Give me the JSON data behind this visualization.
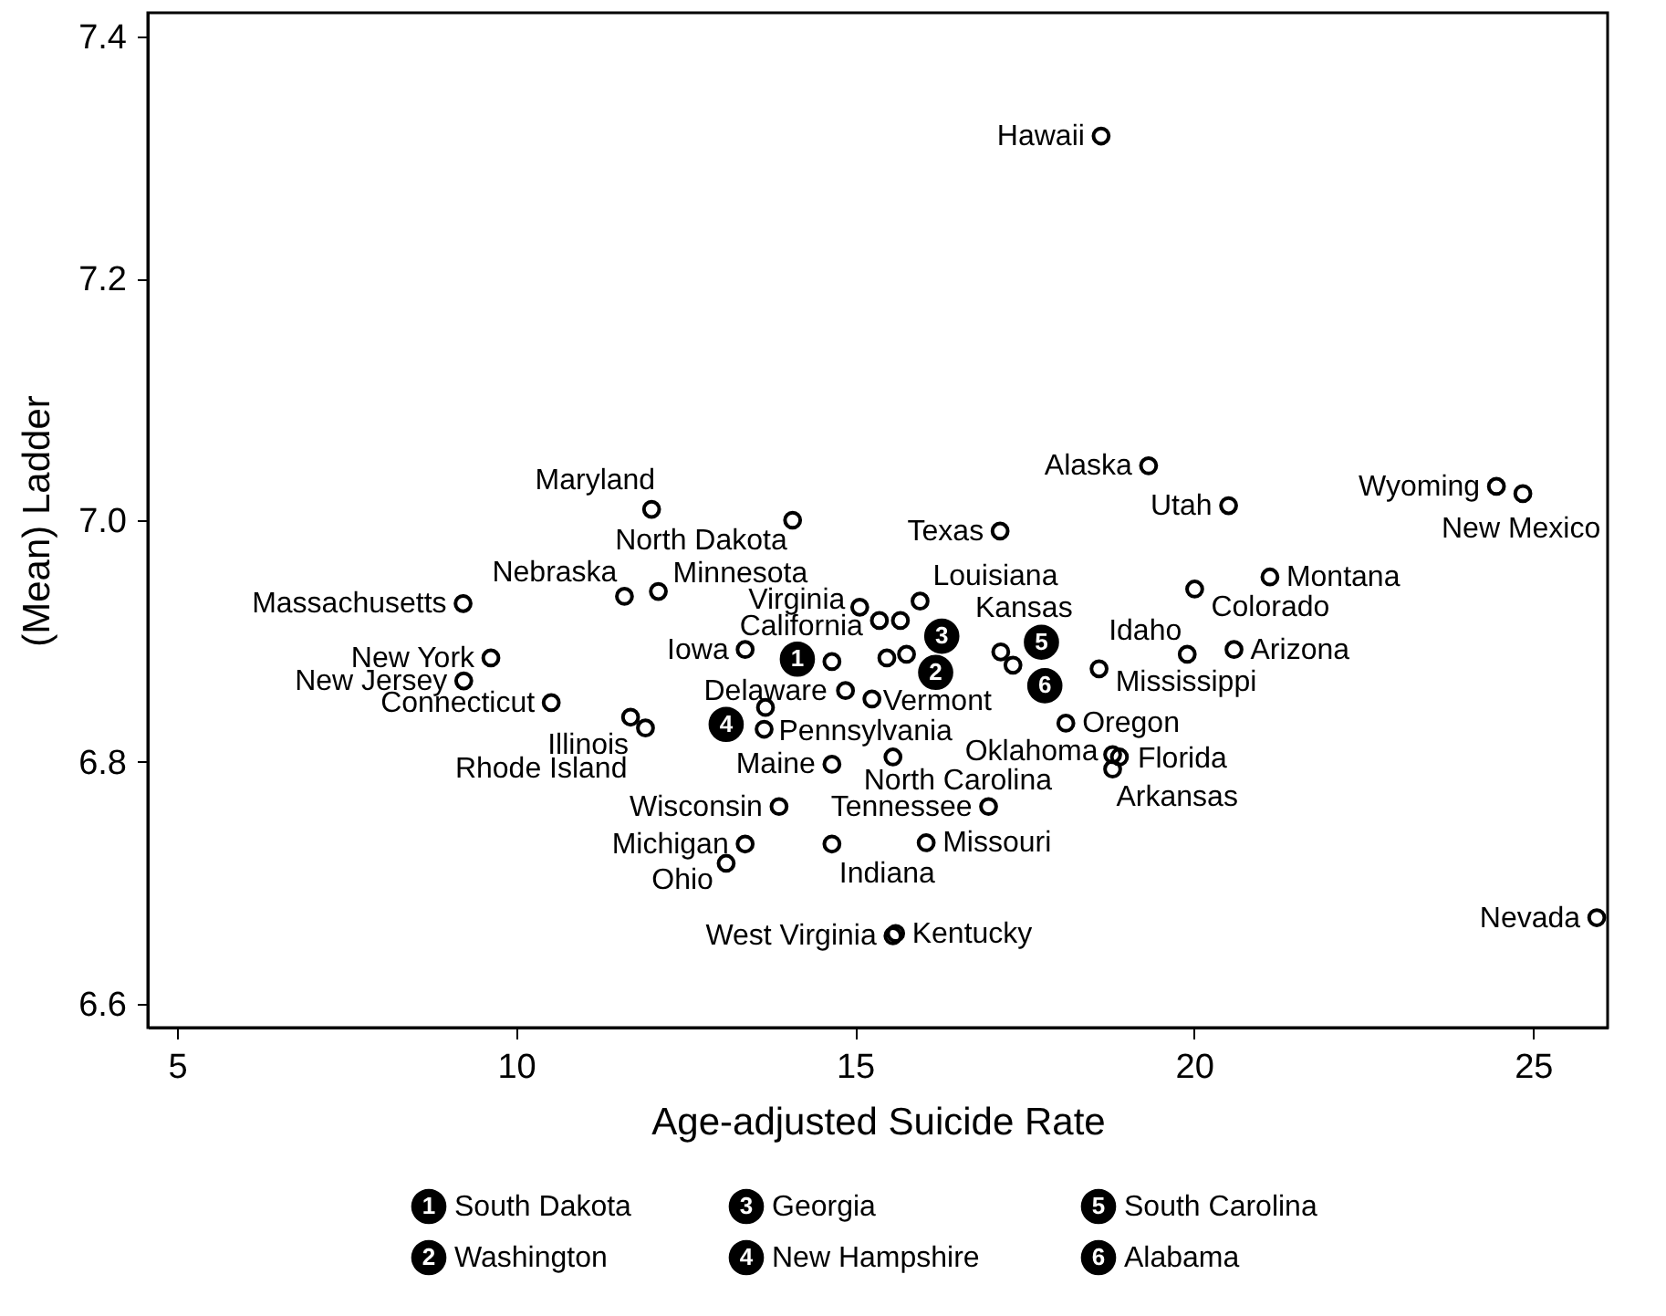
{
  "chart_data": {
    "type": "scatter",
    "xlabel": "Age-adjusted Suicide Rate",
    "ylabel": "(Mean) Ladder",
    "xlim": [
      4.57,
      26.1
    ],
    "ylim": [
      6.58,
      7.42
    ],
    "xticks": [
      5,
      10,
      15,
      20,
      25
    ],
    "yticks": [
      6.6,
      6.8,
      {
        "value": 7,
        "label": "7.0"
      },
      7.2,
      7.4
    ],
    "grid": false,
    "legend": "bottom",
    "marker": "circle",
    "series": [
      {
        "color": "#000000",
        "x": [
          18.63,
          19.33,
          20.51,
          17.14,
          24.46,
          24.85,
          12.0,
          14.08,
          11.6,
          12.1,
          9.22,
          15.07,
          15.36,
          15.96,
          15.67,
          13.38,
          14.86,
          15.25,
          13.66,
          14.66,
          15.56,
          18.8,
          18.9,
          18.8,
          16.97,
          16.05,
          14.66,
          13.88,
          13.38,
          13.1,
          15.56,
          15.6,
          11.69,
          11.91,
          10.52,
          9.63,
          9.23,
          19.9,
          20.01,
          21.12,
          20.59,
          18.6,
          18.11,
          25.94,
          14.66,
          13.68,
          15.47,
          15.76,
          17.15,
          17.33
        ],
        "values": [
          7.318,
          7.045,
          7.012,
          6.991,
          7.028,
          7.022,
          7.009,
          7.0,
          6.937,
          6.941,
          6.931,
          6.928,
          6.917,
          6.933,
          6.917,
          6.893,
          6.859,
          6.852,
          6.827,
          6.798,
          6.804,
          6.806,
          6.804,
          6.794,
          6.763,
          6.733,
          6.732,
          6.763,
          6.732,
          6.716,
          6.656,
          6.658,
          6.837,
          6.828,
          6.849,
          6.886,
          6.867,
          6.889,
          6.943,
          6.953,
          6.893,
          6.877,
          6.832,
          6.671,
          6.883,
          6.845,
          6.886,
          6.889,
          6.891,
          6.88
        ]
      },
      {
        "name": "South Dakota",
        "color": "#000000",
        "x": [
          14.15
        ],
        "values": [
          6.885
        ]
      },
      {
        "name": "Washington",
        "color": "#000000",
        "x": [
          16.19
        ],
        "values": [
          6.874
        ]
      },
      {
        "name": "Georgia",
        "color": "#000000",
        "x": [
          16.28
        ],
        "values": [
          6.904
        ]
      },
      {
        "name": "New Hampshire",
        "color": "#000000",
        "x": [
          13.1
        ],
        "values": [
          6.831
        ]
      },
      {
        "name": "South Carolina",
        "color": "#000000",
        "x": [
          17.75
        ],
        "values": [
          6.899
        ]
      },
      {
        "name": "Alabama",
        "color": "#000000",
        "x": [
          17.8
        ],
        "values": [
          6.863
        ]
      }
    ],
    "annotations": [
      {
        "text": "Hawaii",
        "x": 18.63,
        "y": 7.318
      },
      {
        "text": "Alaska",
        "x": 19.33,
        "y": 7.045
      },
      {
        "text": "Utah",
        "x": 20.51,
        "y": 7.012
      },
      {
        "text": "Texas",
        "x": 17.14,
        "y": 6.991
      },
      {
        "text": "Wyoming",
        "x": 24.46,
        "y": 7.028
      },
      {
        "text": "New Mexico",
        "x": 24.85,
        "y": 7.022
      },
      {
        "text": "Maryland",
        "x": 12.0,
        "y": 7.009
      },
      {
        "text": "North Dakota",
        "x": 14.08,
        "y": 7.0
      },
      {
        "text": "Nebraska",
        "x": 11.6,
        "y": 6.937
      },
      {
        "text": "Minnesota",
        "x": 12.1,
        "y": 6.941
      },
      {
        "text": "Massachusetts",
        "x": 9.22,
        "y": 6.931
      },
      {
        "text": "Virginia",
        "x": 15.07,
        "y": 6.928
      },
      {
        "text": "California",
        "x": 15.36,
        "y": 6.917
      },
      {
        "text": "Louisiana",
        "x": 15.96,
        "y": 6.933
      },
      {
        "text": "Kansas",
        "x": 15.67,
        "y": 6.917
      },
      {
        "text": "Iowa",
        "x": 13.38,
        "y": 6.893
      },
      {
        "text": "Delaware",
        "x": 14.86,
        "y": 6.859
      },
      {
        "text": "Vermont",
        "x": 15.25,
        "y": 6.852
      },
      {
        "text": "Pennsylvania",
        "x": 13.66,
        "y": 6.827
      },
      {
        "text": "Maine",
        "x": 14.66,
        "y": 6.798
      },
      {
        "text": "North Carolina",
        "x": 15.56,
        "y": 6.804
      },
      {
        "text": "Oklahoma",
        "x": 18.8,
        "y": 6.806
      },
      {
        "text": "Florida",
        "x": 18.9,
        "y": 6.804
      },
      {
        "text": "Arkansas",
        "x": 18.8,
        "y": 6.794
      },
      {
        "text": "Tennessee",
        "x": 16.97,
        "y": 6.763
      },
      {
        "text": "Missouri",
        "x": 16.05,
        "y": 6.733
      },
      {
        "text": "Indiana",
        "x": 14.66,
        "y": 6.732
      },
      {
        "text": "Wisconsin",
        "x": 13.88,
        "y": 6.763
      },
      {
        "text": "Michigan",
        "x": 13.38,
        "y": 6.732
      },
      {
        "text": "Ohio",
        "x": 13.1,
        "y": 6.716
      },
      {
        "text": "West Virginia",
        "x": 15.56,
        "y": 6.656
      },
      {
        "text": "Kentucky",
        "x": 15.6,
        "y": 6.658
      },
      {
        "text": "Illinois",
        "x": 11.69,
        "y": 6.837
      },
      {
        "text": "Rhode Island",
        "x": 11.91,
        "y": 6.828
      },
      {
        "text": "Connecticut",
        "x": 10.52,
        "y": 6.849
      },
      {
        "text": "New York",
        "x": 9.63,
        "y": 6.886
      },
      {
        "text": "New Jersey",
        "x": 9.23,
        "y": 6.867
      },
      {
        "text": "Idaho",
        "x": 19.9,
        "y": 6.889
      },
      {
        "text": "Colorado",
        "x": 20.01,
        "y": 6.943
      },
      {
        "text": "Montana",
        "x": 21.12,
        "y": 6.953
      },
      {
        "text": "Arizona",
        "x": 20.59,
        "y": 6.893
      },
      {
        "text": "Mississippi",
        "x": 18.6,
        "y": 6.877
      },
      {
        "text": "Oregon",
        "x": 18.11,
        "y": 6.832
      },
      {
        "text": "Nevada",
        "x": 25.94,
        "y": 6.671
      },
      {
        "text": "1",
        "x": 14.15,
        "y": 6.885
      },
      {
        "text": "2",
        "x": 16.19,
        "y": 6.874
      },
      {
        "text": "3",
        "x": 16.28,
        "y": 6.904
      },
      {
        "text": "4",
        "x": 13.1,
        "y": 6.831
      },
      {
        "text": "5",
        "x": 17.75,
        "y": 6.899
      },
      {
        "text": "6",
        "x": 17.8,
        "y": 6.863
      }
    ]
  }
}
